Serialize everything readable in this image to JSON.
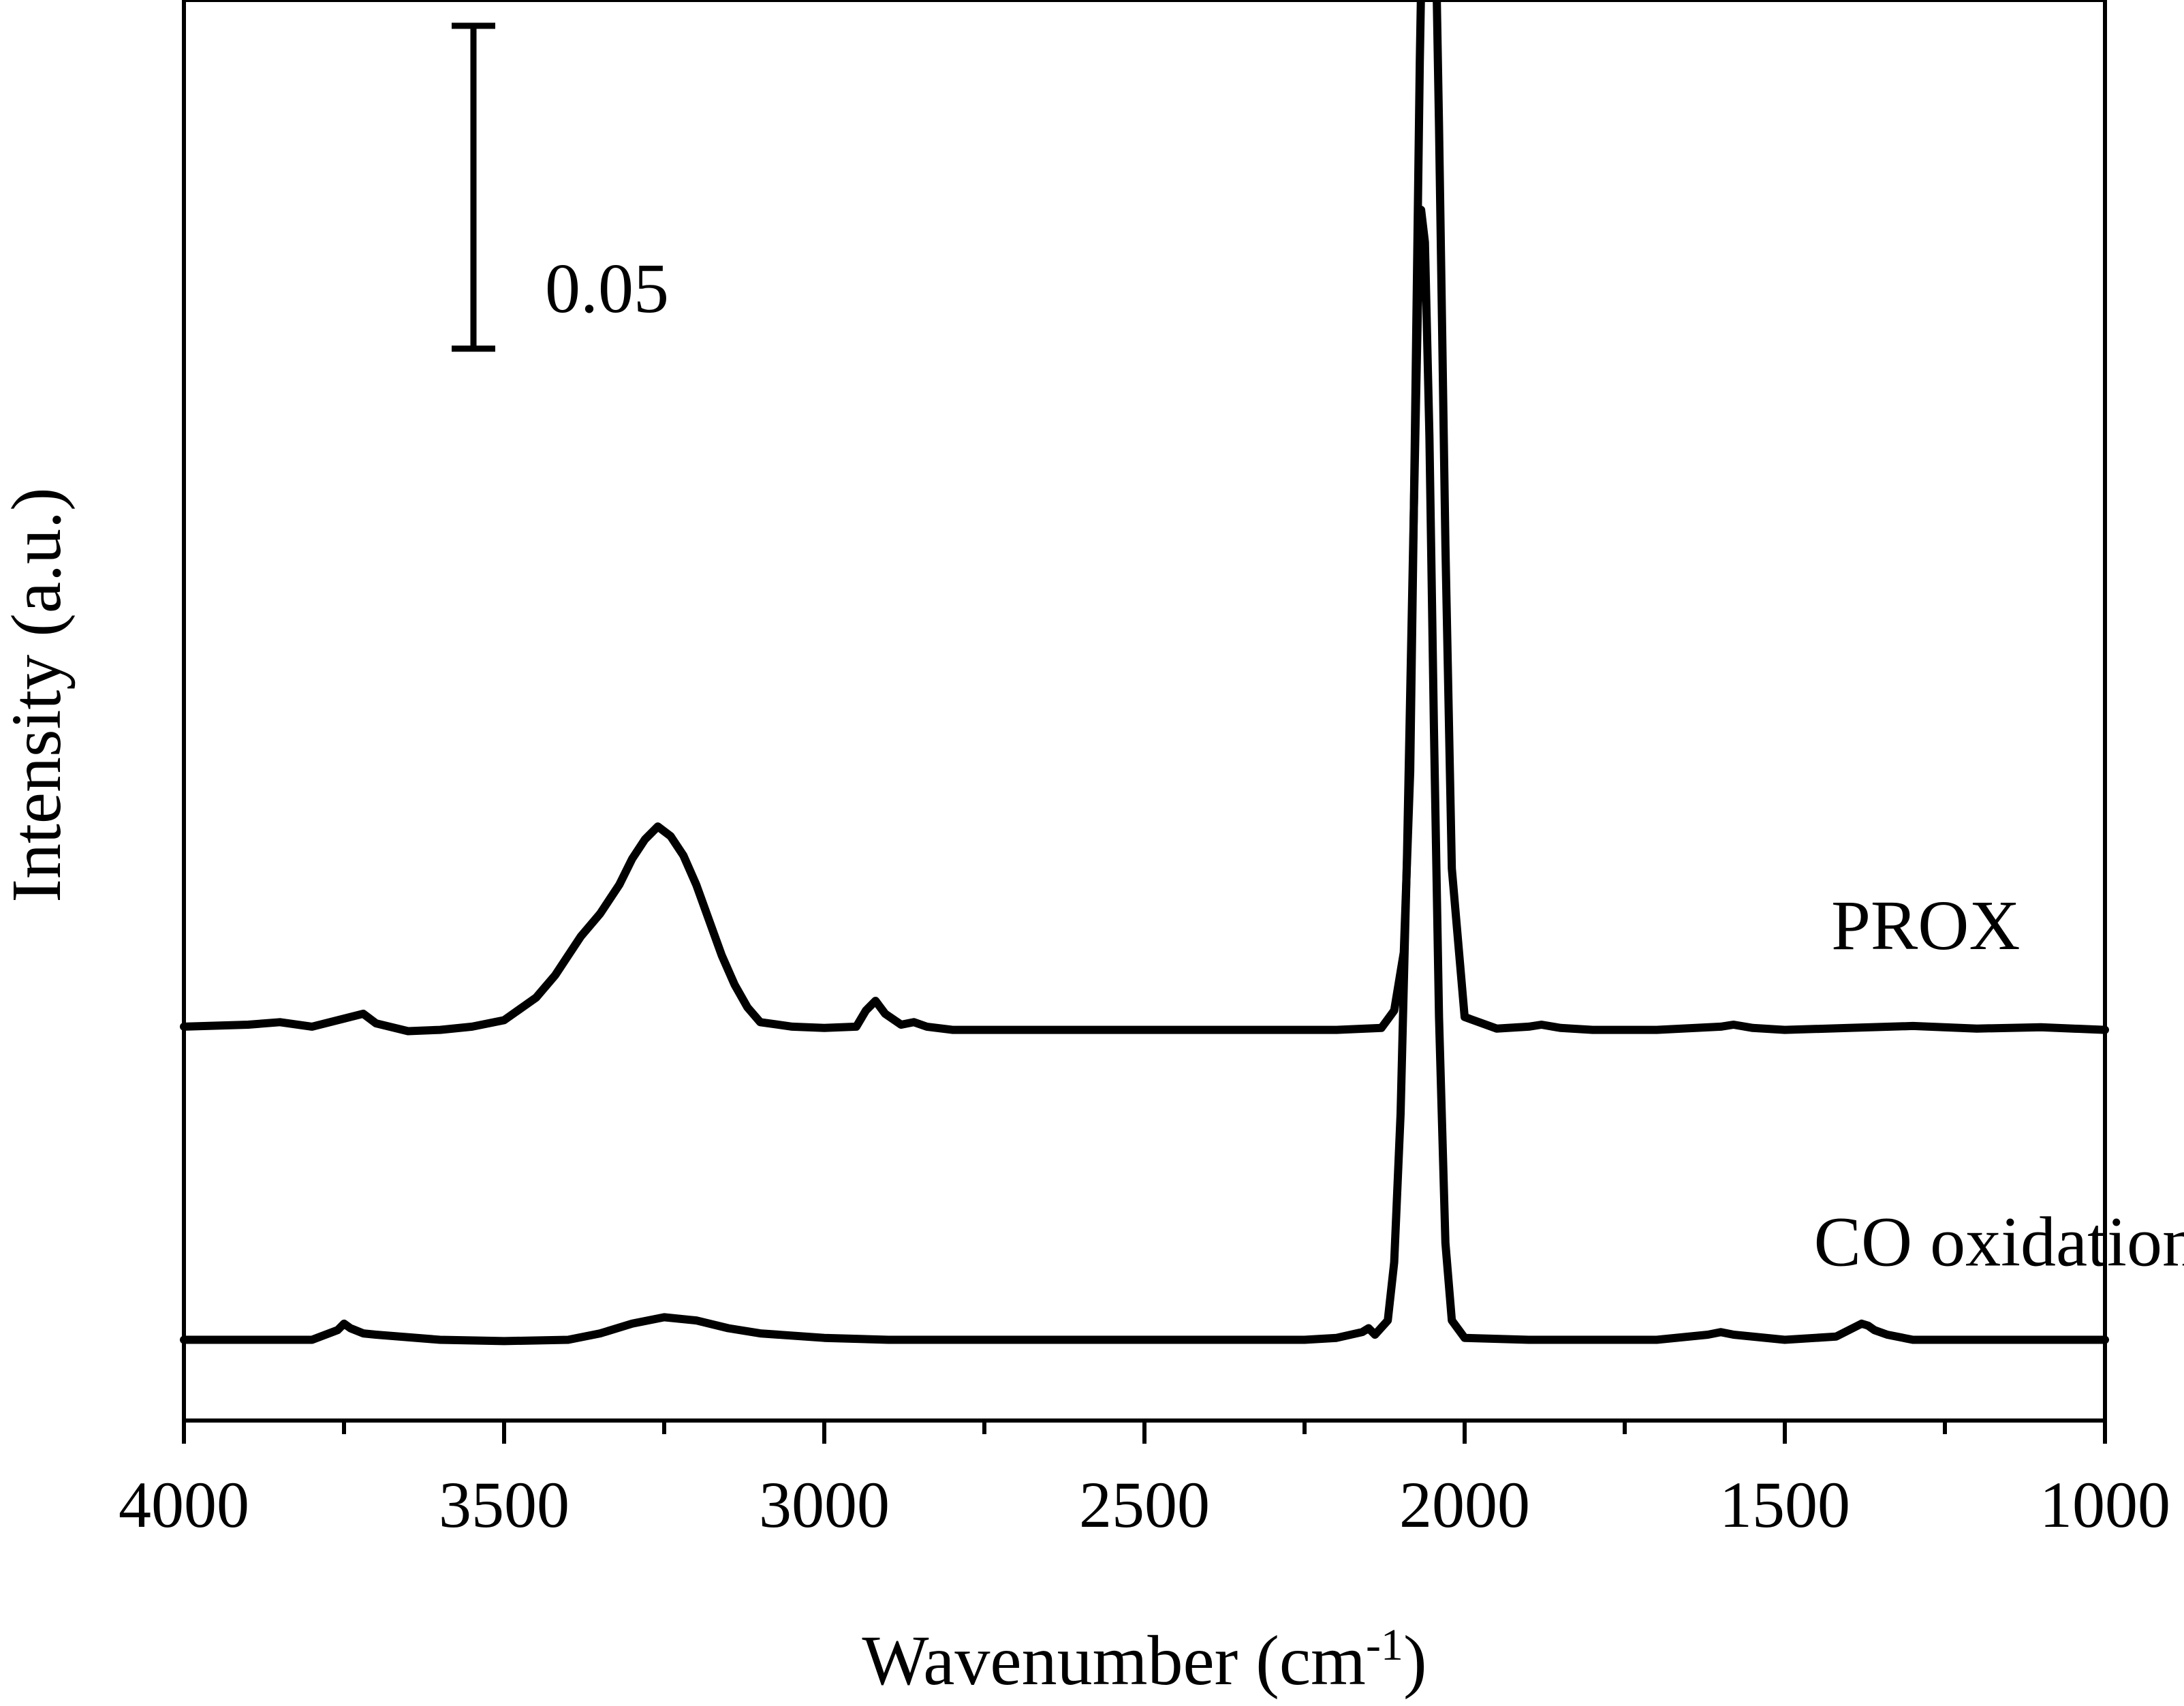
{
  "chart_data": {
    "type": "line",
    "title": "",
    "xlabel": "Wavenumber (cm",
    "xlabel_sup": "-1",
    "xlabel_close": ")",
    "ylabel": "Intensity (a.u.)",
    "xlim": [
      4000,
      1000
    ],
    "x_reversed": true,
    "ylim": [
      -0.0125,
      0.2075
    ],
    "y_ticks_shown": false,
    "grid": false,
    "legend": "none",
    "x_ticks": [
      4000,
      3500,
      3000,
      2500,
      2000,
      1500,
      1000
    ],
    "x_tick_labels": [
      "4000",
      "3500",
      "3000",
      "2500",
      "2000",
      "1500",
      "1000"
    ],
    "x_minor_ticks": [
      3750,
      3250,
      2750,
      2250,
      1750,
      1250
    ],
    "line_color": "#000000",
    "scale_bar": {
      "label": "0.05",
      "value": 0.05,
      "y_bottom": 0.1535
    },
    "series": [
      {
        "name": "PROX",
        "x": [
          4000,
          3900,
          3850,
          3800,
          3760,
          3740,
          3720,
          3700,
          3650,
          3600,
          3550,
          3500,
          3450,
          3420,
          3400,
          3380,
          3350,
          3320,
          3300,
          3280,
          3260,
          3240,
          3220,
          3200,
          3180,
          3160,
          3140,
          3120,
          3100,
          3050,
          3000,
          2950,
          2935,
          2920,
          2905,
          2880,
          2860,
          2840,
          2800,
          2600,
          2400,
          2200,
          2130,
          2110,
          2095,
          2085,
          2078,
          2070,
          2063,
          2055,
          2048,
          2040,
          2030,
          2020,
          2000,
          1950,
          1900,
          1880,
          1850,
          1800,
          1700,
          1600,
          1580,
          1550,
          1500,
          1400,
          1300,
          1200,
          1100,
          1000
        ],
        "y": [
          0.0005,
          0.0008,
          0.0012,
          0.0005,
          0.0015,
          0.002,
          0.0025,
          0.001,
          -0.0002,
          0.0,
          0.0005,
          0.0015,
          0.005,
          0.0085,
          0.0115,
          0.0145,
          0.018,
          0.0225,
          0.0265,
          0.0295,
          0.0315,
          0.03,
          0.027,
          0.0225,
          0.017,
          0.0115,
          0.007,
          0.0035,
          0.0012,
          0.0005,
          0.0003,
          0.0005,
          0.003,
          0.0045,
          0.0025,
          0.0008,
          0.0012,
          0.0005,
          0.0,
          0.0,
          0.0,
          0.0,
          0.0003,
          0.003,
          0.012,
          0.04,
          0.09,
          0.15,
          0.19,
          0.2,
          0.185,
          0.14,
          0.075,
          0.025,
          0.002,
          0.0002,
          0.0005,
          0.0008,
          0.0003,
          0.0,
          0.0,
          0.0005,
          0.0008,
          0.0003,
          0.0,
          0.0003,
          0.0006,
          0.0002,
          0.0004,
          0.0
        ]
      },
      {
        "name": "CO oxidation",
        "x": [
          4000,
          3800,
          3760,
          3750,
          3740,
          3720,
          3700,
          3600,
          3500,
          3400,
          3350,
          3300,
          3250,
          3200,
          3150,
          3100,
          3000,
          2900,
          2800,
          2600,
          2400,
          2250,
          2200,
          2160,
          2150,
          2140,
          2120,
          2110,
          2100,
          2090,
          2080,
          2073,
          2068,
          2062,
          2055,
          2048,
          2040,
          2030,
          2020,
          2000,
          1900,
          1800,
          1700,
          1620,
          1600,
          1580,
          1500,
          1420,
          1400,
          1380,
          1370,
          1360,
          1340,
          1300,
          1200,
          1100,
          1000
        ],
        "y": [
          0.0,
          0.0,
          0.0015,
          0.0025,
          0.0018,
          0.001,
          0.0008,
          0.0,
          -0.0002,
          0.0,
          0.001,
          0.0025,
          0.0035,
          0.003,
          0.0018,
          0.001,
          0.0003,
          0.0,
          0.0,
          0.0,
          0.0,
          0.0,
          0.0003,
          0.0012,
          0.0018,
          0.0008,
          0.003,
          0.012,
          0.035,
          0.075,
          0.125,
          0.16,
          0.175,
          0.17,
          0.14,
          0.095,
          0.05,
          0.015,
          0.003,
          0.0003,
          0.0,
          0.0,
          0.0,
          0.0008,
          0.0012,
          0.0008,
          0.0,
          0.0005,
          0.0015,
          0.0025,
          0.0022,
          0.0015,
          0.0008,
          0.0,
          0.0,
          0.0,
          0.0
        ]
      }
    ],
    "series_offsets": [
      0.048,
      0.0
    ],
    "series_label_positions": [
      {
        "name": "PROX",
        "x": 1280,
        "y": 0.0605
      },
      {
        "name": "CO oxidation",
        "x": 1155,
        "y": 0.0115
      }
    ]
  }
}
